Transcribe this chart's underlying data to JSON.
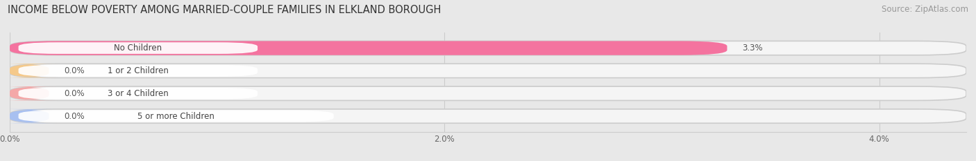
{
  "title": "INCOME BELOW POVERTY AMONG MARRIED-COUPLE FAMILIES IN ELKLAND BOROUGH",
  "source": "Source: ZipAtlas.com",
  "categories": [
    "No Children",
    "1 or 2 Children",
    "3 or 4 Children",
    "5 or more Children"
  ],
  "values": [
    3.3,
    0.0,
    0.0,
    0.0
  ],
  "bar_colors": [
    "#f4739f",
    "#f5c98a",
    "#f4a8a8",
    "#a8c0f0"
  ],
  "xlim_max": 4.4,
  "xticks": [
    0.0,
    2.0,
    4.0
  ],
  "xtick_labels": [
    "0.0%",
    "2.0%",
    "4.0%"
  ],
  "bar_height": 0.62,
  "bar_gap": 0.38,
  "background_color": "#e8e8e8",
  "bar_bg_color": "#f0f0f0",
  "title_fontsize": 10.5,
  "source_fontsize": 8.5,
  "label_fontsize": 8.5,
  "value_fontsize": 8.5,
  "zero_bar_width": 0.18
}
